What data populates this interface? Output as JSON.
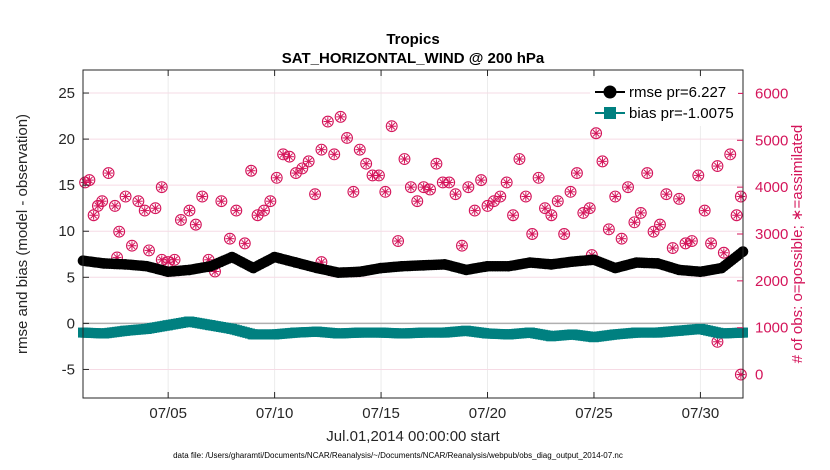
{
  "chart_data": {
    "type": "line",
    "title": "Tropics",
    "subtitle": "SAT_HORIZONTAL_WIND @ 200 hPa",
    "xlabel": "Jul.01,2014 00:00:00 start",
    "ylabel": "rmse and bias (model - observation)",
    "y2label": "# of obs: o=possible; ∗=assimilated",
    "footer": "data file: /Users/gharamti/Documents/NCAR/Reanalysis/~/Documents/NCAR/Reanalysis/webpub/obs_diag_output_2014-07.nc",
    "xlim": [
      1,
      32
    ],
    "ylim": [
      -8.1,
      27.5
    ],
    "y2lim": [
      -500,
      6500
    ],
    "xticks": [
      5,
      10,
      15,
      20,
      25,
      30
    ],
    "xtick_labels": [
      "07/05",
      "07/10",
      "07/15",
      "07/20",
      "07/25",
      "07/30"
    ],
    "yticks": [
      -5,
      0,
      5,
      10,
      15,
      20,
      25
    ],
    "ytick_labels": [
      "-5",
      "0",
      "5",
      "10",
      "15",
      "20",
      "25"
    ],
    "y2ticks": [
      0,
      1000,
      2000,
      3000,
      4000,
      5000,
      6000
    ],
    "y2tick_labels": [
      "0",
      "1000",
      "2000",
      "3000",
      "4000",
      "5000",
      "6000"
    ],
    "legend_position": "top-right",
    "colors": {
      "rmse": "#000000",
      "bias": "#008080",
      "obs": "#d4145a",
      "zero_line": "#b0b0b0"
    },
    "series": [
      {
        "name": "rmse",
        "legend": "rmse pr=6.227",
        "x": [
          1,
          2,
          3,
          4,
          5,
          6,
          7,
          8,
          9,
          10,
          11,
          12,
          13,
          14,
          15,
          16,
          17,
          18,
          19,
          20,
          21,
          22,
          23,
          24,
          25,
          26,
          27,
          28,
          29,
          30,
          31,
          32
        ],
        "values": [
          6.8,
          6.5,
          6.4,
          6.2,
          5.6,
          5.8,
          6.2,
          7.2,
          6.0,
          7.2,
          6.6,
          6.0,
          5.5,
          5.6,
          6.0,
          6.2,
          6.3,
          6.4,
          5.8,
          6.2,
          6.2,
          6.6,
          6.4,
          6.7,
          6.9,
          6.0,
          6.6,
          6.5,
          5.8,
          5.6,
          6.0,
          7.8
        ]
      },
      {
        "name": "bias",
        "legend": "bias pr=-1.0075",
        "x": [
          1,
          2,
          3,
          4,
          5,
          6,
          7,
          8,
          9,
          10,
          11,
          12,
          13,
          14,
          15,
          16,
          17,
          18,
          19,
          20,
          21,
          22,
          23,
          24,
          25,
          26,
          27,
          28,
          29,
          30,
          31,
          32
        ],
        "values": [
          -1.0,
          -1.1,
          -0.8,
          -0.6,
          -0.2,
          0.2,
          -0.2,
          -0.6,
          -1.2,
          -1.2,
          -1.0,
          -0.9,
          -1.1,
          -1.0,
          -1.0,
          -1.1,
          -1.0,
          -1.0,
          -0.8,
          -1.1,
          -1.2,
          -1.0,
          -1.4,
          -1.2,
          -1.5,
          -1.2,
          -1.0,
          -1.0,
          -0.8,
          -0.6,
          -1.1,
          -1.0
        ]
      },
      {
        "name": "obs_possible",
        "axis": "right",
        "x": [
          1.1,
          1.3,
          1.5,
          1.7,
          1.9,
          2.2,
          2.5,
          2.7,
          3.0,
          3.3,
          3.6,
          3.9,
          4.1,
          4.4,
          4.7,
          5.0,
          5.3,
          5.6,
          6.0,
          6.3,
          6.6,
          6.9,
          7.2,
          7.5,
          7.9,
          8.2,
          8.6,
          8.9,
          9.2,
          9.5,
          9.8,
          10.1,
          10.4,
          10.7,
          11.0,
          11.3,
          11.6,
          11.9,
          12.2,
          12.5,
          12.8,
          13.1,
          13.4,
          13.7,
          14.0,
          14.3,
          14.6,
          14.9,
          15.2,
          15.5,
          15.8,
          16.1,
          16.4,
          16.7,
          17.0,
          17.3,
          17.6,
          17.9,
          18.2,
          18.5,
          18.8,
          19.1,
          19.4,
          19.7,
          20.0,
          20.3,
          20.6,
          20.9,
          21.2,
          21.5,
          21.8,
          22.1,
          22.4,
          22.7,
          23.0,
          23.3,
          23.6,
          23.9,
          24.2,
          24.5,
          24.8,
          25.1,
          25.4,
          25.7,
          26.0,
          26.3,
          26.6,
          26.9,
          27.2,
          27.5,
          27.8,
          28.1,
          28.4,
          28.7,
          29.0,
          29.3,
          29.6,
          29.9,
          30.2,
          30.5,
          30.8,
          31.1,
          31.4,
          31.7,
          31.9
        ],
        "values": [
          4100,
          4150,
          3400,
          3600,
          3700,
          4300,
          3600,
          3050,
          3800,
          2750,
          3700,
          3500,
          2650,
          3550,
          4000,
          2400,
          2450,
          3300,
          3500,
          3200,
          3800,
          2450,
          2200,
          3700,
          2900,
          3500,
          2800,
          4350,
          3400,
          3500,
          3700,
          4200,
          4700,
          4650,
          4300,
          4400,
          4550,
          3850,
          4800,
          5400,
          4700,
          5500,
          5050,
          3900,
          4800,
          4500,
          4250,
          4250,
          3900,
          5300,
          2850,
          4600,
          4000,
          3700,
          4000,
          3950,
          4500,
          4100,
          4100,
          3850,
          2750,
          4000,
          3500,
          4150,
          3600,
          3700,
          3800,
          4100,
          3400,
          4600,
          3800,
          3000,
          4200,
          3550,
          3400,
          3700,
          3000,
          3900,
          4300,
          3450,
          3550,
          5150,
          4550,
          3100,
          3800,
          2900,
          4000,
          3250,
          3450,
          4300,
          3050,
          3200,
          3850,
          2700,
          3750,
          2800,
          2850,
          4250,
          3500,
          2800,
          4450,
          2600,
          4700,
          3400,
          3800
        ]
      },
      {
        "name": "obs_assimilated",
        "axis": "right",
        "x": [
          2.6,
          4.7,
          12.2,
          24.9,
          30.8,
          31.9
        ],
        "values": [
          2500,
          2450,
          2400,
          2550,
          700,
          0
        ]
      }
    ]
  }
}
